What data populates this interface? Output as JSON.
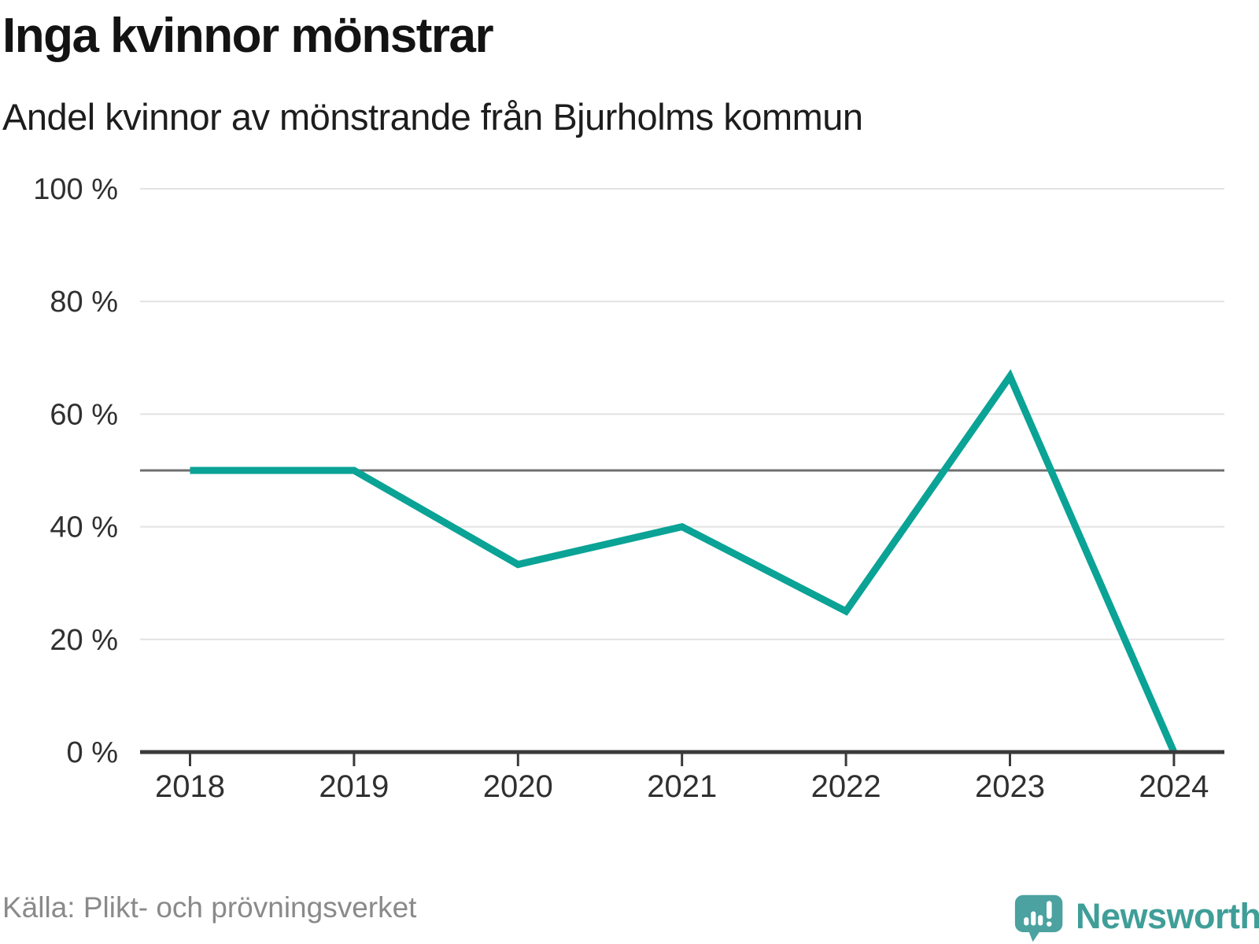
{
  "header": {
    "title": "Inga kvinnor mönstrar",
    "subtitle": "Andel kvinnor av mönstrande från Bjurholms kommun"
  },
  "footer": {
    "source": "Källa: Plikt- och prövningsverket",
    "brand": "Newsworthy"
  },
  "colors": {
    "line": "#0aa396",
    "reference_line": "#6f6f6f",
    "grid": "#e2e2e2",
    "axis": "#3a3a3a",
    "tick_label": "#303030",
    "source_text": "#8a8a8a",
    "brand_teal": "#3f9e98",
    "logo_bubble": "#4ba2a0"
  },
  "chart_data": {
    "type": "line",
    "title": "Inga kvinnor mönstrar",
    "subtitle": "Andel kvinnor av mönstrande från Bjurholms kommun",
    "x": [
      2018,
      2019,
      2020,
      2021,
      2022,
      2023,
      2024
    ],
    "x_tick_labels": [
      "2018",
      "2019",
      "2020",
      "2021",
      "2022",
      "2023",
      "2024"
    ],
    "series": [
      {
        "name": "Andel kvinnor av mönstrande",
        "values": [
          50,
          50,
          33.3,
          40,
          25,
          66.7,
          0
        ]
      }
    ],
    "y_ticks": [
      0,
      20,
      40,
      60,
      80,
      100
    ],
    "y_tick_labels": [
      "0 %",
      "20 %",
      "40 %",
      "60 %",
      "80 %",
      "100 %"
    ],
    "ylim": [
      0,
      100
    ],
    "unit": "%",
    "reference_line_y": 50,
    "grid": true,
    "legend": false
  }
}
